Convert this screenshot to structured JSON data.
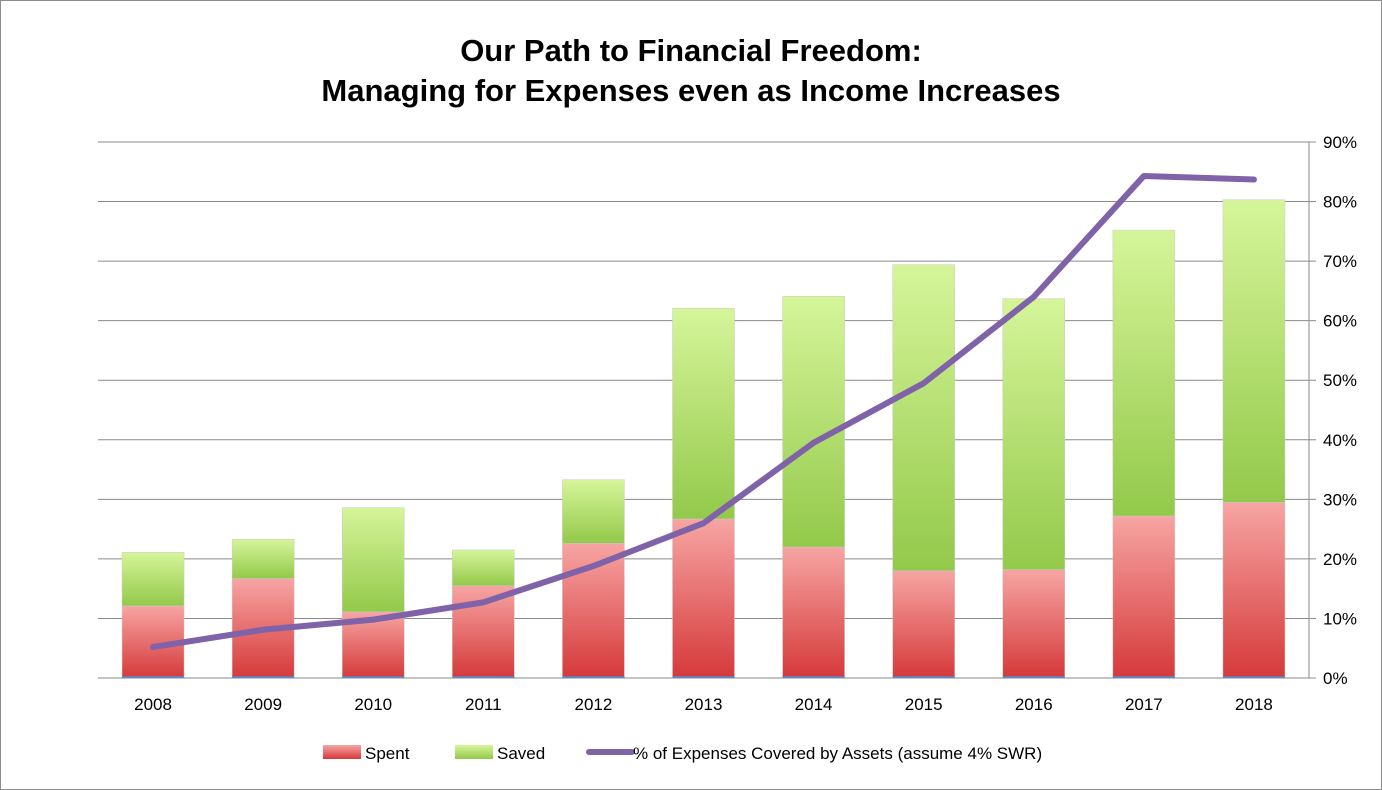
{
  "chart_data": {
    "type": "bar",
    "title": "Our Path to Financial Freedom:",
    "subtitle": "Managing for Expenses even as Income Increases",
    "categories": [
      "2008",
      "2009",
      "2010",
      "2011",
      "2012",
      "2013",
      "2014",
      "2015",
      "2016",
      "2017",
      "2018"
    ],
    "series": [
      {
        "name": "Spent",
        "type": "bar",
        "stack": "total",
        "axis": "left",
        "color": "#e35a5a",
        "values": [
          12.1,
          16.7,
          11.1,
          15.5,
          22.6,
          26.7,
          22.0,
          18.0,
          18.2,
          27.2,
          29.5
        ]
      },
      {
        "name": "Saved",
        "type": "bar",
        "stack": "total",
        "axis": "left",
        "color": "#9fd35a",
        "values": [
          9.0,
          6.6,
          17.5,
          6.0,
          10.7,
          35.4,
          42.1,
          51.4,
          45.5,
          48.0,
          50.8
        ]
      },
      {
        "name": "% of Expenses Covered by Assets (assume 4% SWR)",
        "type": "line",
        "axis": "right",
        "color": "#8062a8",
        "values": [
          5.2,
          8.1,
          9.8,
          12.7,
          18.8,
          26.0,
          39.5,
          49.5,
          64.0,
          84.3,
          83.7
        ]
      }
    ],
    "y2lim": [
      0,
      90
    ],
    "y2ticks": [
      "0%",
      "10%",
      "20%",
      "30%",
      "40%",
      "50%",
      "60%",
      "70%",
      "80%",
      "90%"
    ],
    "ylim": [
      0,
      90
    ],
    "grid": true,
    "legend": "bottom"
  }
}
